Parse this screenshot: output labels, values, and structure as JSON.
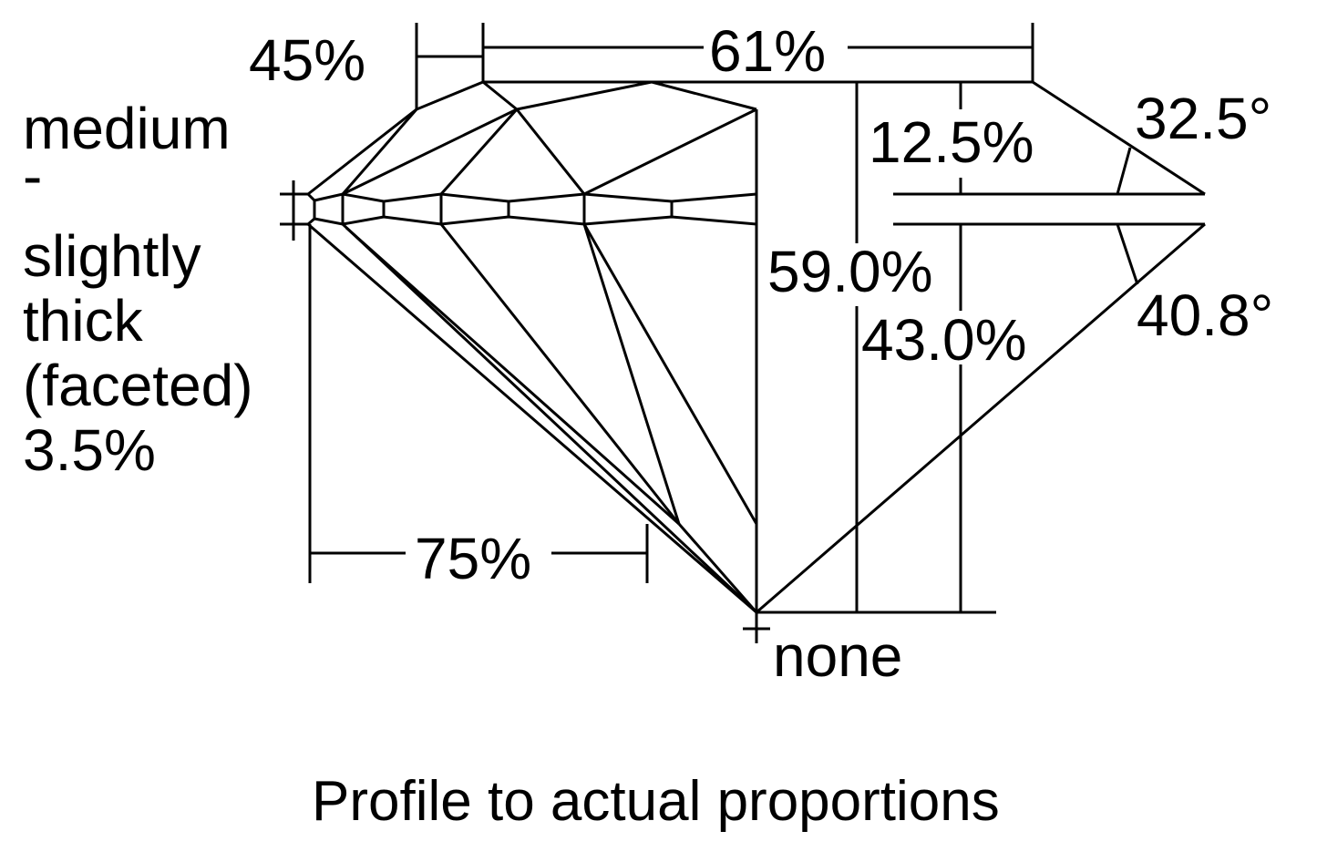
{
  "diagram": {
    "labels": {
      "crown_height_or_lower_half": "45%",
      "table": "61%",
      "girdle_lines": [
        "medium",
        "-",
        "slightly",
        "thick",
        "(faceted)",
        "3.5%"
      ],
      "crown_height": "12.5%",
      "crown_angle": "32.5°",
      "total_depth": "59.0%",
      "pavilion_depth": "43.0%",
      "pavilion_angle": "40.8°",
      "lower_half": "75%",
      "culet": "none"
    },
    "caption": "Profile to actual proportions",
    "line_color": "#000000",
    "background": "#ffffff"
  }
}
